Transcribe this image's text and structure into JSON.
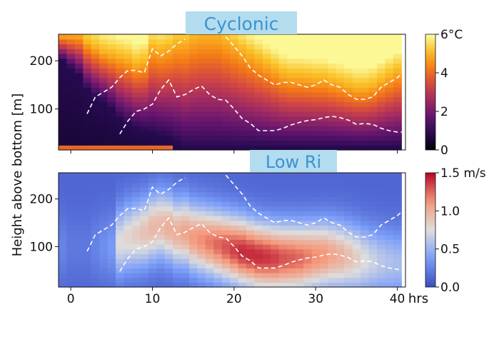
{
  "ylabel": "Height above bottom [m]",
  "x_ticks": [
    "0",
    "10",
    "20",
    "30",
    "40"
  ],
  "x_unit": "hrs",
  "badge_color": "#b3dcef",
  "badge_text_color": "#3a94cf",
  "chart_data": [
    {
      "type": "heatmap",
      "title": "Cyclonic",
      "colormap": "inferno",
      "colorbar_ticks": [
        "0",
        "2",
        "4",
        "6°C"
      ],
      "clim": [
        0,
        6
      ],
      "xlim": [
        -1.5,
        41
      ],
      "ylim": [
        15,
        255
      ],
      "yticks": [
        "100",
        "200"
      ],
      "x": [
        -1,
        0,
        1,
        2,
        3,
        4,
        5,
        6,
        7,
        8,
        9,
        10,
        11,
        12,
        13,
        14,
        15,
        16,
        17,
        18,
        19,
        20,
        21,
        22,
        23,
        24,
        25,
        26,
        27,
        28,
        29,
        30,
        31,
        32,
        33,
        34,
        35,
        36,
        37,
        38,
        39,
        40
      ],
      "lower_boundary_m": [
        200,
        185,
        170,
        140,
        125,
        115,
        100,
        80,
        68,
        60,
        55,
        50,
        45,
        40,
        30,
        20,
        20,
        20,
        20,
        20,
        20,
        20,
        20,
        20,
        20,
        20,
        20,
        20,
        20,
        20,
        20,
        20,
        20,
        20,
        20,
        20,
        20,
        20,
        20,
        20,
        20,
        20
      ],
      "upper_boundary_m": [
        255,
        255,
        255,
        240,
        230,
        220,
        215,
        210,
        205,
        195,
        200,
        230,
        225,
        230,
        240,
        240,
        250,
        255,
        255,
        255,
        245,
        235,
        225,
        215,
        205,
        195,
        185,
        175,
        170,
        170,
        168,
        165,
        165,
        160,
        155,
        150,
        145,
        145,
        150,
        160,
        170,
        180
      ],
      "dashed_lines": [
        {
          "x": [
            2,
            3,
            5,
            6,
            7,
            8,
            9,
            10,
            11,
            12,
            13,
            14
          ],
          "y": [
            90,
            125,
            145,
            165,
            180,
            180,
            175,
            225,
            210,
            220,
            235,
            245
          ]
        },
        {
          "x": [
            6,
            7,
            8,
            9,
            10,
            11,
            12,
            13,
            14,
            15,
            16,
            17,
            18,
            19,
            20,
            21,
            22,
            23,
            24,
            25,
            26,
            27,
            28,
            29,
            30,
            31,
            32,
            33,
            34,
            35,
            36,
            37,
            38,
            39,
            40,
            41
          ],
          "y": [
            48,
            75,
            95,
            100,
            110,
            140,
            160,
            125,
            130,
            140,
            148,
            130,
            120,
            118,
            100,
            80,
            70,
            55,
            55,
            55,
            60,
            67,
            72,
            76,
            78,
            82,
            85,
            82,
            77,
            68,
            70,
            68,
            60,
            55,
            52,
            52
          ]
        },
        {
          "x": [
            19,
            20,
            21,
            22,
            23,
            24,
            25,
            26,
            27,
            28,
            29,
            30,
            31,
            32,
            33,
            34,
            35,
            36,
            37,
            38,
            39,
            40,
            41
          ],
          "y": [
            250,
            230,
            210,
            185,
            170,
            160,
            150,
            155,
            155,
            150,
            145,
            150,
            160,
            150,
            145,
            130,
            120,
            120,
            125,
            145,
            155,
            165,
            180
          ]
        }
      ]
    },
    {
      "type": "heatmap",
      "title": "Low Ri",
      "colormap": "coolwarm",
      "colorbar_ticks": [
        "0.0",
        "0.5",
        "1.0",
        "1.5 m/s"
      ],
      "clim": [
        0,
        1.5
      ],
      "xlim": [
        -1.5,
        41
      ],
      "ylim": [
        15,
        255
      ],
      "yticks": [
        "100",
        "200"
      ],
      "x": [
        -1,
        0,
        1,
        2,
        3,
        4,
        5,
        6,
        7,
        8,
        9,
        10,
        11,
        12,
        13,
        14,
        15,
        16,
        17,
        18,
        19,
        20,
        21,
        22,
        23,
        24,
        25,
        26,
        27,
        28,
        29,
        30,
        31,
        32,
        33,
        34,
        35,
        36,
        37,
        38,
        39,
        40
      ],
      "jet_core_m": [
        100,
        100,
        100,
        100,
        100,
        100,
        100,
        110,
        120,
        125,
        130,
        140,
        145,
        140,
        130,
        130,
        120,
        115,
        110,
        105,
        100,
        95,
        90,
        85,
        80,
        78,
        76,
        76,
        76,
        76,
        78,
        80,
        82,
        82,
        80,
        78,
        75,
        72,
        70,
        68,
        66,
        65
      ],
      "jet_peak_mps": [
        0.25,
        0.2,
        0.2,
        0.2,
        0.25,
        0.3,
        0.35,
        0.75,
        0.8,
        0.85,
        0.9,
        0.95,
        0.95,
        1.0,
        1.0,
        1.05,
        1.1,
        1.15,
        1.2,
        1.25,
        1.3,
        1.35,
        1.4,
        1.4,
        1.4,
        1.38,
        1.35,
        1.3,
        1.28,
        1.25,
        1.2,
        1.15,
        1.12,
        1.05,
        1.0,
        0.92,
        0.85,
        0.75,
        0.68,
        0.62,
        0.58,
        0.55
      ],
      "dashed_lines": [
        {
          "x": [
            2,
            3,
            5,
            6,
            7,
            8,
            9,
            10,
            11,
            12,
            13,
            14
          ],
          "y": [
            90,
            125,
            145,
            165,
            180,
            180,
            175,
            225,
            210,
            220,
            235,
            245
          ]
        },
        {
          "x": [
            6,
            7,
            8,
            9,
            10,
            11,
            12,
            13,
            14,
            15,
            16,
            17,
            18,
            19,
            20,
            21,
            22,
            23,
            24,
            25,
            26,
            27,
            28,
            29,
            30,
            31,
            32,
            33,
            34,
            35,
            36,
            37,
            38,
            39,
            40,
            41
          ],
          "y": [
            48,
            75,
            95,
            100,
            110,
            140,
            160,
            125,
            130,
            140,
            148,
            130,
            120,
            118,
            100,
            80,
            70,
            55,
            55,
            55,
            60,
            67,
            72,
            76,
            78,
            82,
            85,
            82,
            77,
            68,
            70,
            68,
            60,
            55,
            52,
            52
          ]
        },
        {
          "x": [
            19,
            20,
            21,
            22,
            23,
            24,
            25,
            26,
            27,
            28,
            29,
            30,
            31,
            32,
            33,
            34,
            35,
            36,
            37,
            38,
            39,
            40,
            41
          ],
          "y": [
            250,
            230,
            210,
            185,
            170,
            160,
            150,
            155,
            155,
            150,
            145,
            150,
            160,
            150,
            145,
            130,
            120,
            120,
            125,
            145,
            155,
            165,
            180
          ]
        }
      ]
    }
  ]
}
